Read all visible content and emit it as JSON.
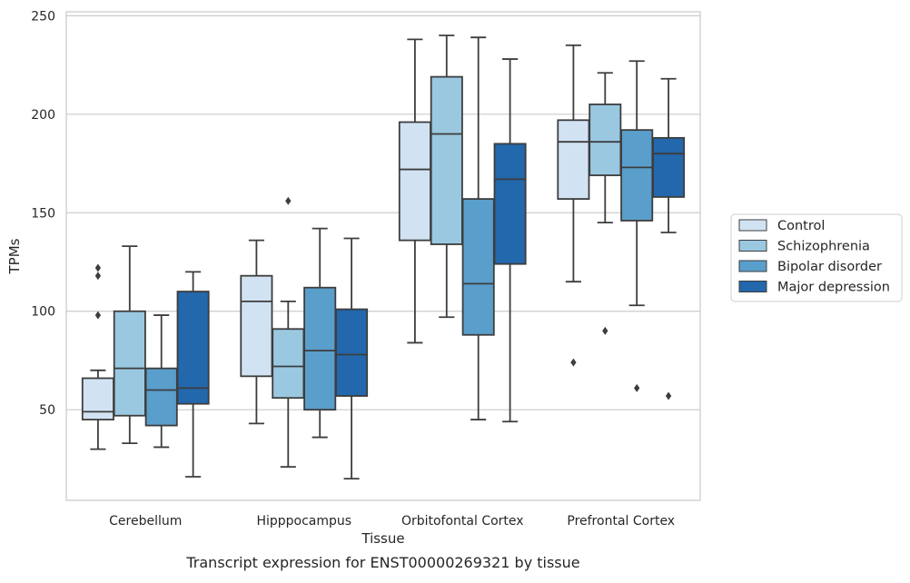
{
  "chart_data": {
    "type": "box",
    "xlabel": "Tissue",
    "ylabel": "TPMs",
    "caption": "Transcript expression for ENST00000269321 by tissue",
    "categories": [
      "Cerebellum",
      "Hipppocampus",
      "Orbitofontal Cortex",
      "Prefrontal Cortex"
    ],
    "ylim": [
      4,
      252
    ],
    "yticks": [
      50,
      100,
      150,
      200,
      250
    ],
    "grid": "horizontal",
    "legend_position": "right",
    "series": [
      {
        "name": "Control",
        "color": "#d1e3f3",
        "boxes": [
          {
            "whisker_low": 30,
            "q1": 45,
            "median": 49,
            "q3": 66,
            "whisker_high": 70,
            "outliers": [
              98,
              118,
              122
            ]
          },
          {
            "whisker_low": 43,
            "q1": 67,
            "median": 105,
            "q3": 118,
            "whisker_high": 136,
            "outliers": []
          },
          {
            "whisker_low": 84,
            "q1": 136,
            "median": 172,
            "q3": 196,
            "whisker_high": 238,
            "outliers": []
          },
          {
            "whisker_low": 115,
            "q1": 157,
            "median": 186,
            "q3": 197,
            "whisker_high": 235,
            "outliers": [
              74
            ]
          }
        ]
      },
      {
        "name": "Schizophrenia",
        "color": "#9ac8e0",
        "boxes": [
          {
            "whisker_low": 33,
            "q1": 47,
            "median": 71,
            "q3": 100,
            "whisker_high": 133,
            "outliers": []
          },
          {
            "whisker_low": 21,
            "q1": 56,
            "median": 72,
            "q3": 91,
            "whisker_high": 105,
            "outliers": [
              156
            ]
          },
          {
            "whisker_low": 97,
            "q1": 134,
            "median": 190,
            "q3": 219,
            "whisker_high": 240,
            "outliers": []
          },
          {
            "whisker_low": 145,
            "q1": 169,
            "median": 186,
            "q3": 205,
            "whisker_high": 221,
            "outliers": [
              90
            ]
          }
        ]
      },
      {
        "name": "Bipolar disorder",
        "color": "#5a9ecb",
        "boxes": [
          {
            "whisker_low": 31,
            "q1": 42,
            "median": 60,
            "q3": 71,
            "whisker_high": 98,
            "outliers": []
          },
          {
            "whisker_low": 36,
            "q1": 50,
            "median": 80,
            "q3": 112,
            "whisker_high": 142,
            "outliers": []
          },
          {
            "whisker_low": 45,
            "q1": 88,
            "median": 114,
            "q3": 157,
            "whisker_high": 239,
            "outliers": []
          },
          {
            "whisker_low": 103,
            "q1": 146,
            "median": 173,
            "q3": 192,
            "whisker_high": 227,
            "outliers": [
              61
            ]
          }
        ]
      },
      {
        "name": "Major depression",
        "color": "#2367ac",
        "boxes": [
          {
            "whisker_low": 16,
            "q1": 53,
            "median": 61,
            "q3": 110,
            "whisker_high": 120,
            "outliers": []
          },
          {
            "whisker_low": 15,
            "q1": 57,
            "median": 78,
            "q3": 101,
            "whisker_high": 137,
            "outliers": []
          },
          {
            "whisker_low": 44,
            "q1": 124,
            "median": 167,
            "q3": 185,
            "whisker_high": 228,
            "outliers": []
          },
          {
            "whisker_low": 140,
            "q1": 158,
            "median": 180,
            "q3": 188,
            "whisker_high": 218,
            "outliers": [
              57
            ]
          }
        ]
      }
    ]
  }
}
